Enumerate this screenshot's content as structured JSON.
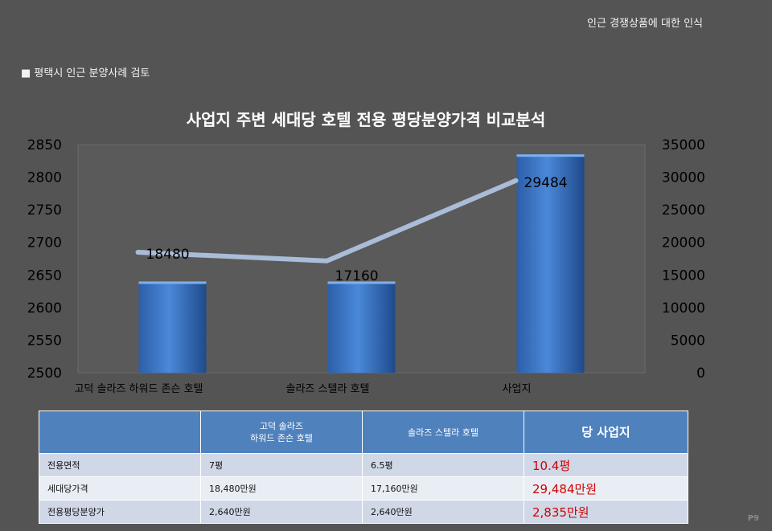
{
  "header": {
    "right_title": "인근 경쟁상품에 대한 인식",
    "section_title": "■ 평택시 인근 분양사례 검토"
  },
  "chart_data": {
    "type": "bar",
    "title": "사업지 주변 세대당 호텔 전용 평당분양가격 비교분석",
    "categories": [
      "고덕 솔라즈 하워드 존슨 호텔",
      "솔라즈 스텔라 호텔",
      "사업지"
    ],
    "series": [
      {
        "values": [
          2640,
          2640,
          2835
        ],
        "axis": "left",
        "type": "bar",
        "color": "#3a75c8"
      },
      {
        "values": [
          18480,
          17160,
          29484
        ],
        "axis": "right",
        "type": "line",
        "color": "#a9bcd8",
        "data_labels": [
          "18480",
          "17160",
          "29484"
        ]
      }
    ],
    "ylim_left": [
      2500,
      2850
    ],
    "yticks_left": [
      "2500",
      "2550",
      "2600",
      "2650",
      "2700",
      "2750",
      "2800",
      "2850"
    ],
    "ylim_right": [
      0,
      35000
    ],
    "yticks_right": [
      "0",
      "5000",
      "10000",
      "15000",
      "20000",
      "25000",
      "30000",
      "35000"
    ],
    "grid": false,
    "legend": "none"
  },
  "table": {
    "headers": [
      "",
      "고덕 솔라즈\n하워드 존슨 호텔",
      "솔라즈 스텔라 호텔",
      "당 사업지"
    ],
    "rows": [
      [
        "전용면적",
        "7평",
        "6.5평",
        "10.4평"
      ],
      [
        "세대당가격",
        "18,480만원",
        "17,160만원",
        "29,484만원"
      ],
      [
        "전용평당분양가",
        "2,640만원",
        "2,640만원",
        "2,835만원"
      ]
    ]
  },
  "page_number": "P9"
}
